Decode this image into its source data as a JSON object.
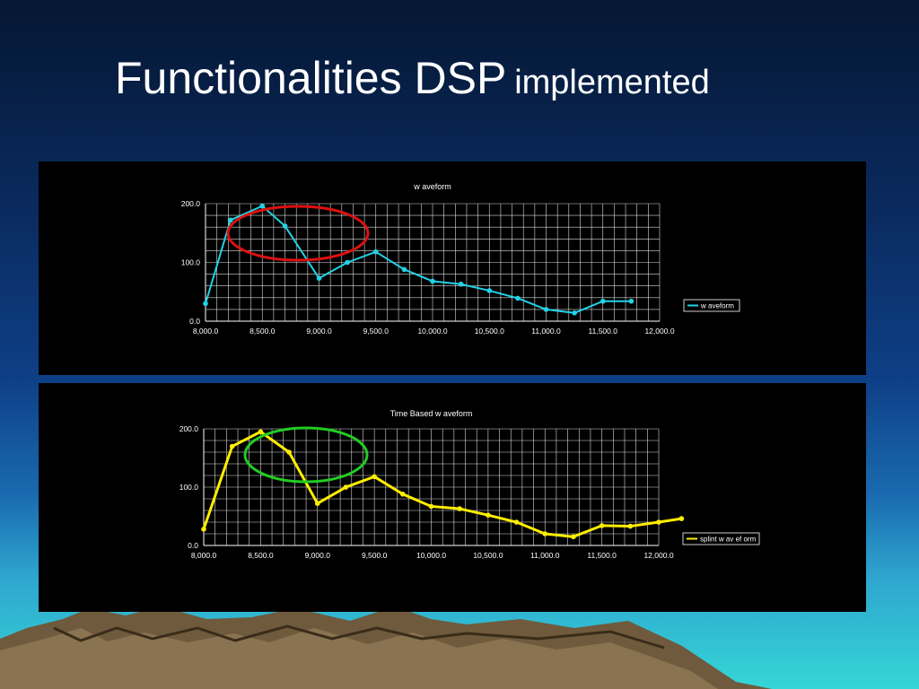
{
  "slide": {
    "title_main": "Functionalities DSP",
    "title_sub": "implemented"
  },
  "colors": {
    "series1": "#22d3e6",
    "series2": "#ffee00",
    "highlight1": "#dd1111",
    "highlight2": "#22cc22"
  },
  "chart_data": [
    {
      "type": "line",
      "title": "w aveform",
      "xlabel": "",
      "ylabel": "",
      "xlim": [
        8000,
        12000
      ],
      "ylim": [
        0,
        200
      ],
      "x_ticks": [
        "8,000.0",
        "8,500.0",
        "9,000.0",
        "9,500.0",
        "10,000.0",
        "10,500.0",
        "11,000.0",
        "11,500.0",
        "12,000.0"
      ],
      "y_ticks": [
        "200.0",
        "100.0",
        "0.0"
      ],
      "grid": true,
      "legend_position": "right",
      "series": [
        {
          "name": "w aveform",
          "x": [
            8000,
            8220,
            8500,
            8700,
            9000,
            9250,
            9500,
            9750,
            10000,
            10250,
            10500,
            10750,
            11000,
            11250,
            11500,
            11750
          ],
          "y": [
            30,
            172,
            196,
            162,
            73,
            100,
            118,
            88,
            68,
            63,
            52,
            39,
            20,
            14,
            34,
            34
          ]
        }
      ]
    },
    {
      "type": "line",
      "title": "Time Based w aveform",
      "xlabel": "",
      "ylabel": "",
      "xlim": [
        8000,
        12000
      ],
      "ylim": [
        0,
        200
      ],
      "x_ticks": [
        "8,000.0",
        "8,500.0",
        "9,000.0",
        "9,500.0",
        "10,000.0",
        "10,500.0",
        "11,000.0",
        "11,500.0",
        "12,000.0"
      ],
      "y_ticks": [
        "200.0",
        "100.0",
        "0.0"
      ],
      "grid": true,
      "legend_position": "right",
      "series": [
        {
          "name": "splint w av ef orm",
          "x": [
            8000,
            8250,
            8500,
            8750,
            9000,
            9250,
            9500,
            9750,
            10000,
            10250,
            10500,
            10750,
            11000,
            11250,
            11500,
            11750,
            12000,
            12200
          ],
          "y": [
            28,
            170,
            195,
            160,
            72,
            100,
            118,
            88,
            67,
            63,
            52,
            40,
            20,
            15,
            34,
            33,
            40,
            46
          ]
        }
      ]
    }
  ]
}
